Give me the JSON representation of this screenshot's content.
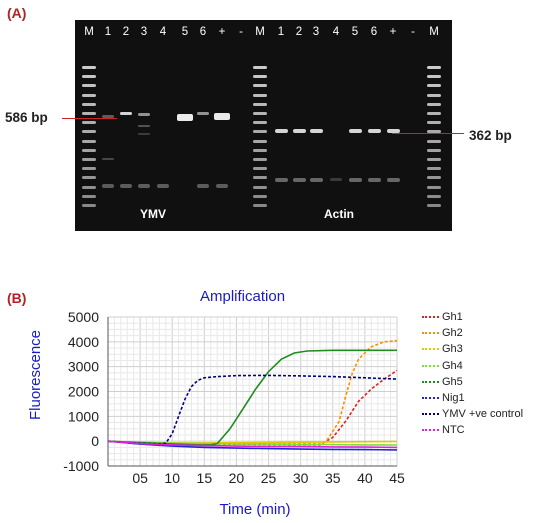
{
  "panel_a": {
    "label": "(A)",
    "lane_labels": [
      "M",
      "1",
      "2",
      "3",
      "4",
      "5",
      "6",
      "+",
      "-",
      "M",
      "1",
      "2",
      "3",
      "4",
      "5",
      "6",
      "+",
      "-",
      "M"
    ],
    "gel_labels": {
      "left": "YMV",
      "right": "Actin"
    },
    "bp_left": "586 bp",
    "bp_right": "362 bp"
  },
  "panel_b": {
    "label": "(B)",
    "chart_title": "Amplification",
    "colors": {
      "accent_red": "#cc2222",
      "title_blue": "#1a1acc"
    }
  },
  "chart_data": {
    "type": "line",
    "title": "Amplification",
    "xlabel": "Time (min)",
    "ylabel": "Fluorescence",
    "xlim": [
      0,
      45
    ],
    "ylim": [
      -1000,
      5000
    ],
    "x_ticks": [
      "05",
      "10",
      "15",
      "20",
      "25",
      "30",
      "35",
      "40",
      "45"
    ],
    "y_ticks": [
      "5000",
      "4000",
      "3000",
      "2000",
      "1000",
      "0",
      "-1000"
    ],
    "grid": true,
    "legend_position": "right",
    "series": [
      {
        "name": "Gh1",
        "color": "#e02020",
        "points": [
          [
            0,
            0
          ],
          [
            5,
            -60
          ],
          [
            10,
            -90
          ],
          [
            15,
            -110
          ],
          [
            20,
            -120
          ],
          [
            25,
            -130
          ],
          [
            30,
            -140
          ],
          [
            33,
            -150
          ],
          [
            35,
            150
          ],
          [
            37,
            800
          ],
          [
            39,
            1600
          ],
          [
            41,
            2100
          ],
          [
            43,
            2500
          ],
          [
            45,
            2850
          ]
        ]
      },
      {
        "name": "Gh2",
        "color": "#ff8c00",
        "points": [
          [
            0,
            0
          ],
          [
            5,
            -60
          ],
          [
            10,
            -90
          ],
          [
            15,
            -100
          ],
          [
            20,
            -110
          ],
          [
            25,
            -110
          ],
          [
            30,
            -110
          ],
          [
            33,
            -110
          ],
          [
            34,
            0
          ],
          [
            36,
            800
          ],
          [
            37,
            1800
          ],
          [
            38,
            2700
          ],
          [
            39,
            3300
          ],
          [
            41,
            3800
          ],
          [
            43,
            4000
          ],
          [
            45,
            4050
          ]
        ]
      },
      {
        "name": "Gh3",
        "color": "#e6c800",
        "points": [
          [
            0,
            0
          ],
          [
            5,
            -50
          ],
          [
            10,
            -70
          ],
          [
            15,
            -70
          ],
          [
            20,
            -60
          ],
          [
            25,
            -50
          ],
          [
            30,
            -40
          ],
          [
            35,
            -30
          ],
          [
            40,
            -20
          ],
          [
            45,
            -10
          ]
        ]
      },
      {
        "name": "Gh4",
        "color": "#7fdc3c",
        "points": [
          [
            0,
            0
          ],
          [
            5,
            -50
          ],
          [
            10,
            -80
          ],
          [
            15,
            -100
          ],
          [
            20,
            -110
          ],
          [
            25,
            -120
          ],
          [
            30,
            -130
          ],
          [
            35,
            -140
          ],
          [
            40,
            -150
          ],
          [
            45,
            -155
          ]
        ]
      },
      {
        "name": "Gh5",
        "color": "#1e8c1e",
        "points": [
          [
            0,
            0
          ],
          [
            5,
            -60
          ],
          [
            10,
            -110
          ],
          [
            14,
            -150
          ],
          [
            16,
            -150
          ],
          [
            17,
            -100
          ],
          [
            19,
            500
          ],
          [
            21,
            1300
          ],
          [
            23,
            2100
          ],
          [
            25,
            2800
          ],
          [
            27,
            3300
          ],
          [
            29,
            3550
          ],
          [
            31,
            3630
          ],
          [
            35,
            3660
          ],
          [
            40,
            3660
          ],
          [
            45,
            3660
          ]
        ]
      },
      {
        "name": "Nig1",
        "color": "#2323d6",
        "points": [
          [
            0,
            0
          ],
          [
            5,
            -120
          ],
          [
            10,
            -200
          ],
          [
            15,
            -250
          ],
          [
            20,
            -280
          ],
          [
            25,
            -300
          ],
          [
            30,
            -320
          ],
          [
            35,
            -330
          ],
          [
            40,
            -340
          ],
          [
            45,
            -350
          ]
        ]
      },
      {
        "name": "YMV +ve control",
        "color": "#000080",
        "points": [
          [
            0,
            0
          ],
          [
            3,
            -60
          ],
          [
            6,
            -100
          ],
          [
            8,
            -110
          ],
          [
            9,
            -80
          ],
          [
            10,
            300
          ],
          [
            11,
            1000
          ],
          [
            12,
            1700
          ],
          [
            13,
            2200
          ],
          [
            14,
            2450
          ],
          [
            15,
            2550
          ],
          [
            17,
            2600
          ],
          [
            20,
            2640
          ],
          [
            25,
            2650
          ],
          [
            30,
            2630
          ],
          [
            35,
            2600
          ],
          [
            40,
            2550
          ],
          [
            45,
            2500
          ]
        ]
      },
      {
        "name": "NTC",
        "color": "#e020e0",
        "points": [
          [
            0,
            0
          ],
          [
            5,
            -100
          ],
          [
            10,
            -150
          ],
          [
            15,
            -180
          ],
          [
            20,
            -200
          ],
          [
            25,
            -210
          ],
          [
            30,
            -220
          ],
          [
            35,
            -230
          ],
          [
            40,
            -240
          ],
          [
            45,
            -250
          ]
        ]
      }
    ]
  }
}
